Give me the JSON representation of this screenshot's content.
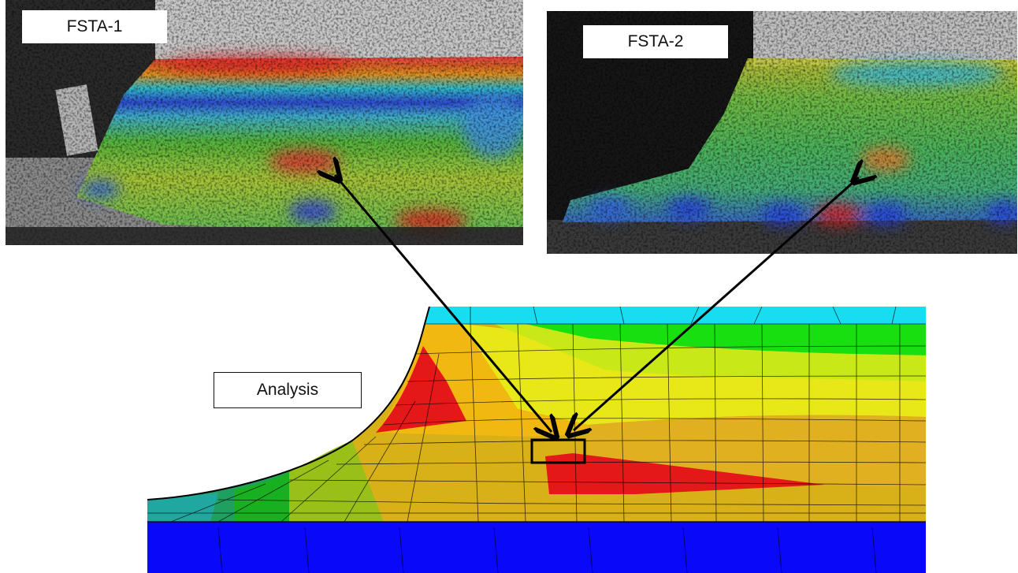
{
  "photos": {
    "left": {
      "label": "FSTA-1"
    },
    "right": {
      "label": "FSTA-2"
    }
  },
  "analysis": {
    "label": "Analysis"
  },
  "colors": {
    "red": "#e31a1c",
    "orange": "#f0a020",
    "yellow": "#e8e020",
    "green": "#20c020",
    "cyan": "#18e0f0",
    "blue": "#0808f8",
    "arrow": "#000000"
  }
}
